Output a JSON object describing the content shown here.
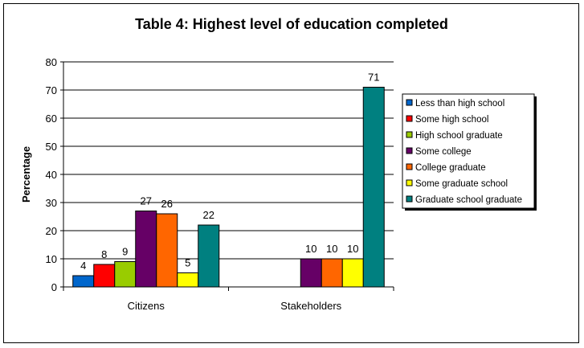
{
  "chart_data": {
    "type": "bar",
    "title": "Table 4: Highest level of education completed",
    "xlabel": "",
    "ylabel": "Percentage",
    "ylim": [
      0,
      80
    ],
    "yticks": [
      0,
      10,
      20,
      30,
      40,
      50,
      60,
      70,
      80
    ],
    "grid": true,
    "legend_position": "right",
    "categories": [
      "Citizens",
      "Stakeholders"
    ],
    "series": [
      {
        "name": "Less than high school",
        "color": "#0066CC",
        "values": [
          4,
          null
        ]
      },
      {
        "name": "Some high school",
        "color": "#FF0000",
        "values": [
          8,
          null
        ]
      },
      {
        "name": "High school graduate",
        "color": "#99CC00",
        "values": [
          9,
          null
        ]
      },
      {
        "name": "Some college",
        "color": "#660066",
        "values": [
          27,
          10
        ]
      },
      {
        "name": "College graduate",
        "color": "#FF6600",
        "values": [
          26,
          10
        ]
      },
      {
        "name": "Some graduate school",
        "color": "#FFFF00",
        "values": [
          5,
          10
        ]
      },
      {
        "name": "Graduate school graduate",
        "color": "#008080",
        "values": [
          22,
          71
        ]
      }
    ]
  }
}
